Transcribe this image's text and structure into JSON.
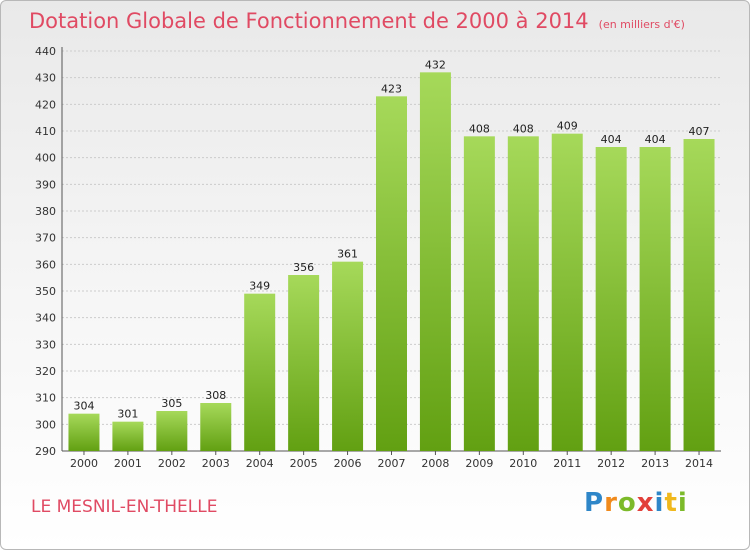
{
  "title": "Dotation Globale de Fonctionnement de 2000 à 2014",
  "subtitle": "(en milliers d'€)",
  "commune": "LE MESNIL-EN-THELLE",
  "logo": {
    "letters": [
      {
        "ch": "P",
        "color": "#2e86c8"
      },
      {
        "ch": "r",
        "color": "#f08a1c"
      },
      {
        "ch": "o",
        "color": "#7cba2a"
      },
      {
        "ch": "x",
        "color": "#e2403a"
      },
      {
        "ch": "i",
        "color": "#2e86c8"
      },
      {
        "ch": "t",
        "color": "#f0b81c"
      },
      {
        "ch": "i",
        "color": "#7cba2a"
      }
    ]
  },
  "colors": {
    "bar_light": "#a6d95a",
    "bar_dark": "#62a012",
    "title": "#e04a63",
    "grid": "#cccccc"
  },
  "chart_data": {
    "type": "bar",
    "title": "Dotation Globale de Fonctionnement de 2000 à 2014",
    "subtitle": "(en milliers d'€)",
    "xlabel": "",
    "ylabel": "",
    "categories": [
      "2000",
      "2001",
      "2002",
      "2003",
      "2004",
      "2005",
      "2006",
      "2007",
      "2008",
      "2009",
      "2010",
      "2011",
      "2012",
      "2013",
      "2014"
    ],
    "values": [
      304,
      301,
      305,
      308,
      349,
      356,
      361,
      423,
      432,
      408,
      408,
      409,
      404,
      404,
      407
    ],
    "ylim": [
      290,
      440
    ],
    "ytick_step": 10,
    "grid": true,
    "legend": "none"
  }
}
